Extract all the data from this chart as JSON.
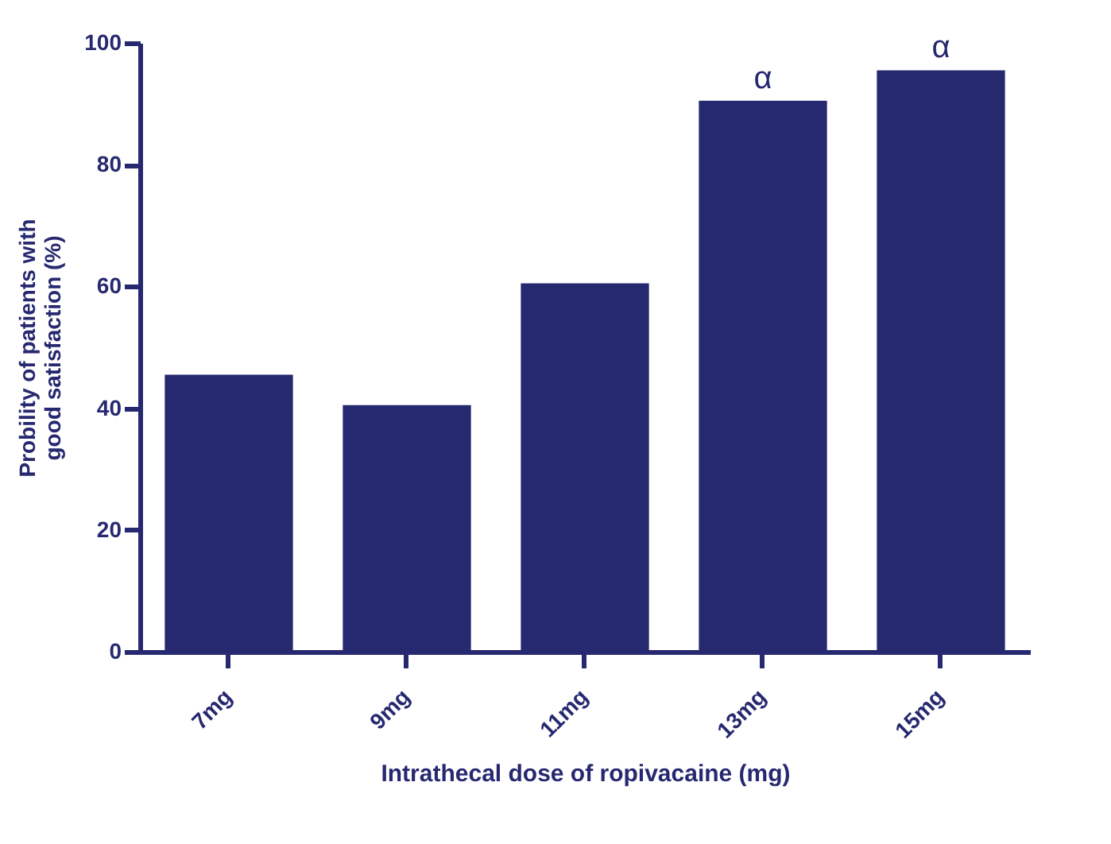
{
  "chart_data": {
    "type": "bar",
    "xlabel": "Intrathecal dose of ropivacaine (mg)",
    "ylabel": "Probility of patients with good satisfaction (%)",
    "categories": [
      "7mg",
      "9mg",
      "11mg",
      "13mg",
      "15mg"
    ],
    "series": [
      {
        "color": "#262870",
        "values": [
          45.5,
          40.5,
          60.5,
          90.5,
          95.5
        ]
      }
    ],
    "ylim": [
      0,
      100
    ],
    "yticks": [
      0,
      20,
      40,
      60,
      80,
      100
    ],
    "grid": false,
    "annotations": [
      {
        "text": "α",
        "x": "13mg",
        "y": 90.5
      },
      {
        "text": "α",
        "x": "15mg",
        "y": 95.5
      }
    ]
  }
}
